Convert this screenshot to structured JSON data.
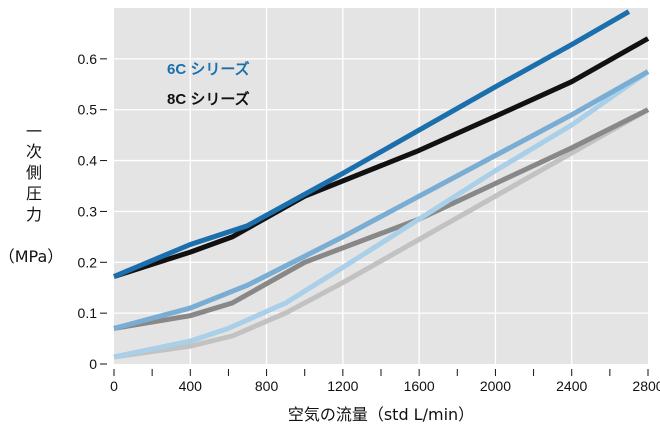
{
  "chart_data": {
    "type": "line",
    "title": "",
    "xlabel": "空気の流量（std L/min）",
    "ylabel_lines": [
      "一",
      "次",
      "側",
      "圧",
      "力",
      "（MPa）"
    ],
    "xlim": [
      0,
      2800
    ],
    "ylim": [
      0,
      0.7
    ],
    "xticks": [
      0,
      400,
      800,
      1200,
      1600,
      2000,
      2400,
      2800
    ],
    "xtick_labels": [
      "0",
      "400",
      "800",
      "1200",
      "1600",
      "2000",
      "2400",
      "2800"
    ],
    "yticks": [
      0,
      0.1,
      0.2,
      0.3,
      0.4,
      0.5,
      0.6
    ],
    "ytick_labels": [
      "0",
      "0.1",
      "0.2",
      "0.3",
      "0.4",
      "0.5",
      "0.6"
    ],
    "grid": true,
    "legend_position": "top-left",
    "legend": [
      {
        "label": "6C シリーズ",
        "color": "#1b6fad"
      },
      {
        "label": "8C シリーズ",
        "color": "#111111"
      }
    ],
    "series": [
      {
        "color": "#1b6fad",
        "points": [
          [
            0,
            0.172
          ],
          [
            400,
            0.235
          ],
          [
            700,
            0.272
          ],
          [
            1200,
            0.375
          ],
          [
            1600,
            0.46
          ],
          [
            2000,
            0.545
          ],
          [
            2400,
            0.628
          ],
          [
            2700,
            0.693
          ]
        ]
      },
      {
        "color": "#111111",
        "points": [
          [
            0,
            0.172
          ],
          [
            400,
            0.22
          ],
          [
            620,
            0.25
          ],
          [
            1000,
            0.33
          ],
          [
            1600,
            0.42
          ],
          [
            2000,
            0.487
          ],
          [
            2400,
            0.555
          ],
          [
            2800,
            0.64
          ]
        ]
      },
      {
        "color": "#7aadd4",
        "points": [
          [
            0,
            0.07
          ],
          [
            400,
            0.11
          ],
          [
            700,
            0.155
          ],
          [
            1200,
            0.25
          ],
          [
            1600,
            0.33
          ],
          [
            2000,
            0.41
          ],
          [
            2400,
            0.49
          ],
          [
            2800,
            0.575
          ]
        ]
      },
      {
        "color": "#888888",
        "points": [
          [
            0,
            0.07
          ],
          [
            400,
            0.095
          ],
          [
            620,
            0.12
          ],
          [
            1000,
            0.2
          ],
          [
            1600,
            0.285
          ],
          [
            2000,
            0.355
          ],
          [
            2400,
            0.425
          ],
          [
            2800,
            0.5
          ]
        ]
      },
      {
        "color": "#a9cfe9",
        "points": [
          [
            0,
            0.014
          ],
          [
            400,
            0.045
          ],
          [
            600,
            0.07
          ],
          [
            900,
            0.12
          ],
          [
            1200,
            0.19
          ],
          [
            1600,
            0.285
          ],
          [
            2000,
            0.38
          ],
          [
            2400,
            0.47
          ],
          [
            2800,
            0.575
          ]
        ]
      },
      {
        "color": "#c2c2c2",
        "points": [
          [
            0,
            0.014
          ],
          [
            400,
            0.035
          ],
          [
            620,
            0.055
          ],
          [
            900,
            0.1
          ],
          [
            1200,
            0.16
          ],
          [
            1600,
            0.245
          ],
          [
            2000,
            0.33
          ],
          [
            2400,
            0.415
          ],
          [
            2800,
            0.5
          ]
        ]
      }
    ]
  }
}
